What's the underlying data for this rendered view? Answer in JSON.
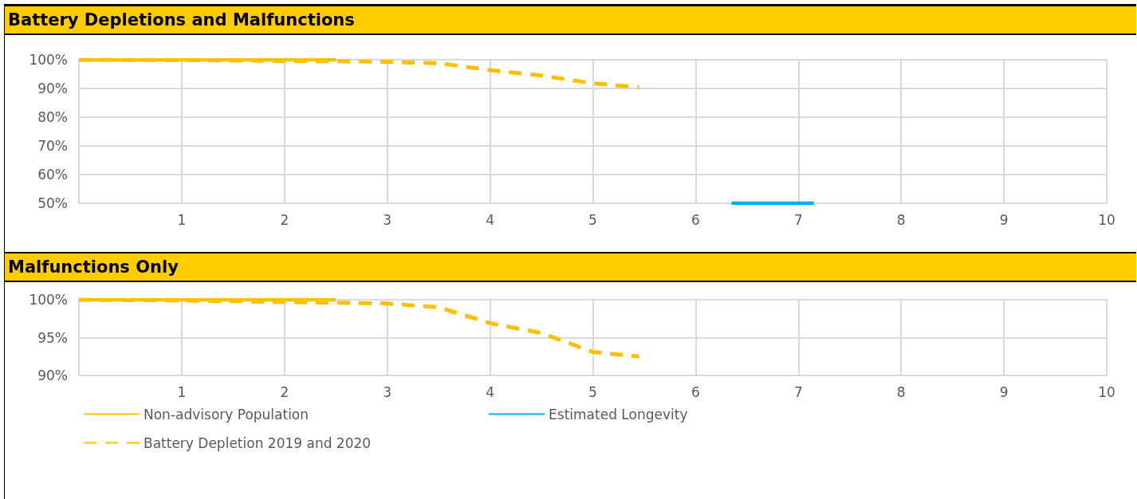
{
  "chart_data": [
    {
      "type": "line",
      "title": "Battery Depletions and Malfunctions",
      "xlim": [
        0,
        10
      ],
      "xticks": [
        1,
        2,
        3,
        4,
        5,
        6,
        7,
        8,
        9,
        10
      ],
      "ylim": [
        50,
        100
      ],
      "yticks": [
        {
          "value": 50,
          "label": "50%"
        },
        {
          "value": 60,
          "label": "60%"
        },
        {
          "value": 70,
          "label": "70%"
        },
        {
          "value": 80,
          "label": "80%"
        },
        {
          "value": 90,
          "label": "90%"
        },
        {
          "value": 100,
          "label": "100%"
        }
      ],
      "grid": true,
      "legend": false,
      "marker": "none",
      "series": [
        {
          "color": "#ffc000",
          "line_style": "solid",
          "x": [
            0,
            1,
            2,
            2.5
          ],
          "values": [
            100,
            100,
            100,
            100
          ]
        },
        {
          "color": "#00b0f0",
          "line_style": "solid",
          "x": [
            6.35,
            7.15
          ],
          "values": [
            50,
            50
          ]
        },
        {
          "color": "#ffc000",
          "line_style": "dashed",
          "x": [
            0,
            1,
            2,
            2.5,
            3,
            3.5,
            4,
            4.5,
            5,
            5.45
          ],
          "values": [
            100,
            99.9,
            99.6,
            99.5,
            99.3,
            98.8,
            96.4,
            94.5,
            91.8,
            90.4
          ]
        }
      ]
    },
    {
      "type": "line",
      "title": "Malfunctions Only",
      "xlim": [
        0,
        10
      ],
      "xticks": [
        1,
        2,
        3,
        4,
        5,
        6,
        7,
        8,
        9,
        10
      ],
      "ylim": [
        90,
        100
      ],
      "yticks": [
        {
          "value": 90,
          "label": "90%"
        },
        {
          "value": 95,
          "label": "95%"
        },
        {
          "value": 100,
          "label": "100%"
        }
      ],
      "grid": true,
      "legend": "bottom",
      "marker": "none",
      "series": [
        {
          "name": "Non-advisory Population",
          "color": "#ffc000",
          "line_style": "solid",
          "x": [
            0,
            1,
            2,
            2.5
          ],
          "values": [
            100,
            100,
            100,
            100
          ]
        },
        {
          "name": "Estimated Longevity",
          "color": "#00b0f0",
          "line_style": "solid"
        },
        {
          "name": "Battery Depletion 2019 and 2020",
          "color": "#ffc000",
          "line_style": "dashed",
          "x": [
            0,
            1,
            2,
            2.5,
            3,
            3.5,
            4,
            4.5,
            5,
            5.45
          ],
          "values": [
            100,
            99.9,
            99.7,
            99.6,
            99.5,
            99.0,
            96.9,
            95.6,
            93.1,
            92.5
          ]
        }
      ]
    }
  ]
}
